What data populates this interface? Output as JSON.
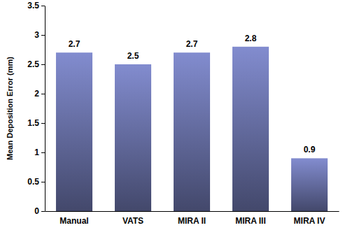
{
  "chart_data": {
    "type": "bar",
    "y_label": "Mean Deposition Error (mm)",
    "categories": [
      "Manual",
      "VATS",
      "MIRA II",
      "MIRA III",
      "MIRA IV"
    ],
    "values": [
      2.7,
      2.5,
      2.7,
      2.8,
      0.9
    ],
    "color": "#7780bd",
    "ylim": [
      0,
      3.5
    ],
    "yticks": [
      0,
      0.5,
      1,
      1.5,
      2,
      2.5,
      3,
      3.5
    ],
    "grid": false,
    "data_labels": true
  }
}
